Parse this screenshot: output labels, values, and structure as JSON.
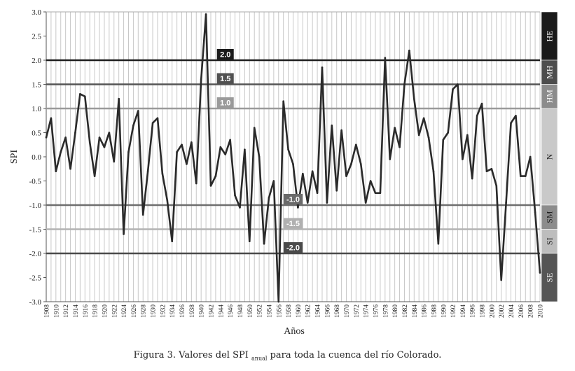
{
  "caption": {
    "prefix": "Figura 3. Valores del SPI",
    "subscript": "anual",
    "suffix": "para toda la cuenca del río Colorado."
  },
  "chart_data": {
    "type": "line",
    "xlabel": "Años",
    "ylabel": "SPI",
    "ylim": [
      -3.0,
      3.0
    ],
    "yticks": [
      3.0,
      2.5,
      2.0,
      1.5,
      1.0,
      0.5,
      0.0,
      -0.5,
      -1.0,
      -1.5,
      -2.0,
      -2.5,
      -3.0
    ],
    "ytick_labels": [
      "3.0",
      "2.5",
      "2.0",
      "1.5",
      "1.0",
      "0.5",
      "0.0",
      "-0.5",
      "-1.0",
      "-1.5",
      "-2.0",
      "-2.5",
      "-3.0"
    ],
    "x_range": [
      1908,
      2010
    ],
    "xtick_step": 2,
    "grid": "vertical-yearly",
    "series": [
      {
        "color": "#2a2a2a",
        "x": [
          1908,
          1909,
          1910,
          1911,
          1912,
          1913,
          1914,
          1915,
          1916,
          1917,
          1918,
          1919,
          1920,
          1921,
          1922,
          1923,
          1924,
          1925,
          1926,
          1927,
          1928,
          1929,
          1930,
          1931,
          1932,
          1933,
          1934,
          1935,
          1936,
          1937,
          1938,
          1939,
          1940,
          1941,
          1942,
          1943,
          1944,
          1945,
          1946,
          1947,
          1948,
          1949,
          1950,
          1951,
          1952,
          1953,
          1954,
          1955,
          1956,
          1957,
          1958,
          1959,
          1960,
          1961,
          1962,
          1963,
          1964,
          1965,
          1966,
          1967,
          1968,
          1969,
          1970,
          1971,
          1972,
          1973,
          1974,
          1975,
          1976,
          1977,
          1978,
          1979,
          1980,
          1981,
          1982,
          1983,
          1984,
          1985,
          1986,
          1987,
          1988,
          1989,
          1990,
          1991,
          1992,
          1993,
          1994,
          1995,
          1996,
          1997,
          1998,
          1999,
          2000,
          2001,
          2002,
          2003,
          2004,
          2005,
          2006,
          2007,
          2008,
          2009,
          2010
        ],
        "y": [
          0.4,
          0.8,
          -0.3,
          0.1,
          0.4,
          -0.25,
          0.5,
          1.3,
          1.25,
          0.3,
          -0.4,
          0.4,
          0.2,
          0.5,
          -0.1,
          1.2,
          -1.6,
          0.1,
          0.65,
          0.95,
          -1.2,
          -0.3,
          0.7,
          0.8,
          -0.35,
          -0.9,
          -1.75,
          0.1,
          0.25,
          -0.15,
          0.3,
          -0.55,
          1.6,
          2.95,
          -0.6,
          -0.4,
          0.2,
          0.05,
          0.35,
          -0.8,
          -1.05,
          0.15,
          -1.75,
          0.6,
          0.0,
          -1.8,
          -0.85,
          -0.5,
          -3.0,
          1.15,
          0.15,
          -0.15,
          -1.05,
          -0.35,
          -0.95,
          -0.3,
          -0.75,
          1.85,
          -0.95,
          0.65,
          -0.7,
          0.55,
          -0.4,
          -0.15,
          0.25,
          -0.15,
          -0.95,
          -0.5,
          -0.75,
          -0.75,
          2.05,
          -0.05,
          0.6,
          0.2,
          1.5,
          2.2,
          1.2,
          0.45,
          0.8,
          0.4,
          -0.3,
          -1.8,
          0.35,
          0.5,
          1.4,
          1.5,
          -0.05,
          0.45,
          -0.45,
          0.85,
          1.1,
          -0.3,
          -0.25,
          -0.6,
          -2.55,
          -0.95,
          0.7,
          0.85,
          -0.4,
          -0.4,
          0.0,
          -1.15,
          -2.4
        ]
      }
    ],
    "thresholds": [
      {
        "value": 2.0,
        "label": "2.0",
        "line_color": "#1f1f1f",
        "box_color": "#1a1a1a",
        "year": 1945
      },
      {
        "value": 1.5,
        "label": "1.5",
        "line_color": "#555555",
        "box_color": "#505050",
        "year": 1945
      },
      {
        "value": 1.0,
        "label": "1.0",
        "line_color": "#9a9a9a",
        "box_color": "#9a9a9a",
        "year": 1945
      },
      {
        "value": -1.0,
        "label": "-1.0",
        "line_color": "#6e6e6e",
        "box_color": "#6a6a6a",
        "year": 1959
      },
      {
        "value": -1.5,
        "label": "-1.5",
        "line_color": "#b4b4b4",
        "box_color": "#b0b0b0",
        "year": 1959
      },
      {
        "value": -2.0,
        "label": "-2.0",
        "line_color": "#4a4a4a",
        "box_color": "#4a4a4a",
        "year": 1959
      }
    ],
    "categories_bands": [
      {
        "label": "HE",
        "from": 2.0,
        "to": 3.0,
        "color": "#1a1a1a",
        "text_color": "#ffffff"
      },
      {
        "label": "MH",
        "from": 1.5,
        "to": 2.0,
        "color": "#4d4d4d",
        "text_color": "#ffffff"
      },
      {
        "label": "HM",
        "from": 1.0,
        "to": 1.5,
        "color": "#8c8c8c",
        "text_color": "#ffffff"
      },
      {
        "label": "N",
        "from": -1.0,
        "to": 1.0,
        "color": "#c9c9c9",
        "text_color": "#222222"
      },
      {
        "label": "SM",
        "from": -1.5,
        "to": -1.0,
        "color": "#8c8c8c",
        "text_color": "#222222"
      },
      {
        "label": "SI",
        "from": -2.0,
        "to": -1.5,
        "color": "#bdbdbd",
        "text_color": "#222222"
      },
      {
        "label": "SE",
        "from": -3.0,
        "to": -2.0,
        "color": "#555555",
        "text_color": "#ffffff"
      }
    ]
  }
}
